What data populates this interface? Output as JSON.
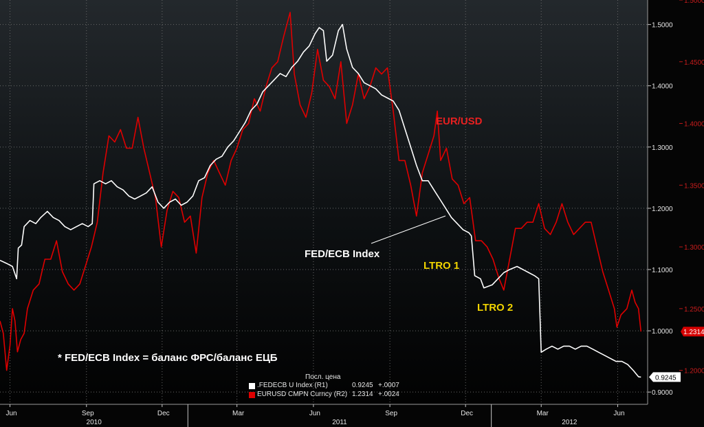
{
  "colors": {
    "background": "#050505",
    "fedecb": "#ffffff",
    "eurusd": "#e00000",
    "annotation_yellow": "#f2d500",
    "annotation_red": "#e82020",
    "grid": "#6a6a6a"
  },
  "annotations": {
    "eurusd_label": "EUR/USD",
    "fedecb_label": "FED/ECB Index",
    "ltro1": "LTRO 1",
    "ltro2": "LTRO 2",
    "footnote": "* FED/ECB Index = баланс ФРС/баланс ЕЦБ"
  },
  "legend": {
    "header": "Посл. цена",
    "items": [
      {
        "name": ".FEDECB U Index  (R1)",
        "value": "0.9245",
        "change": "+.0007",
        "color": "#ffffff"
      },
      {
        "name": "EURUSD CMPN Curncy  (R2)",
        "value": "1.2314",
        "change": "+.0024",
        "color": "#e00000"
      }
    ]
  },
  "chart_data": {
    "type": "line",
    "x_range": [
      "2010-05-20",
      "2012-07-07"
    ],
    "x_tick_labels": [
      {
        "date": "2010-06-01",
        "label": "Jun"
      },
      {
        "date": "2010-09-01",
        "label": "Sep"
      },
      {
        "date": "2010-12-01",
        "label": "Dec"
      },
      {
        "date": "2011-03-01",
        "label": "Mar"
      },
      {
        "date": "2011-06-01",
        "label": "Jun"
      },
      {
        "date": "2011-09-01",
        "label": "Sep"
      },
      {
        "date": "2011-12-01",
        "label": "Dec"
      },
      {
        "date": "2012-03-01",
        "label": "Mar"
      },
      {
        "date": "2012-06-01",
        "label": "Jun"
      }
    ],
    "year_labels": [
      {
        "label": "2010",
        "from": "2010-05-20",
        "to": "2011-01-01"
      },
      {
        "label": "2011",
        "from": "2011-01-01",
        "to": "2012-01-01"
      },
      {
        "label": "2012",
        "from": "2012-01-01",
        "to": "2012-07-07"
      }
    ],
    "axes": {
      "R1": {
        "min": 0.88,
        "max": 1.54,
        "ticks": [
          0.9,
          1.0,
          1.1,
          1.2,
          1.3,
          1.4,
          1.5
        ],
        "tick_labels": [
          "0.9000",
          "1.0000",
          "1.1000",
          "1.2000",
          "1.3000",
          "1.4000",
          "1.5000"
        ]
      },
      "R2": {
        "min": 1.1725,
        "max": 1.5,
        "ticks": [
          1.2,
          1.25,
          1.3,
          1.35,
          1.4,
          1.45,
          1.5
        ],
        "tick_labels": [
          "1.2000",
          "1.2500",
          "1.3000",
          "1.3500",
          "1.4000",
          "1.4500",
          "1.5000"
        ]
      }
    },
    "grid": true,
    "series": [
      {
        "name": ".FEDECB U Index",
        "axis": "R1",
        "last_value_label": "0.9245",
        "points": [
          [
            "2010-05-20",
            1.115
          ],
          [
            "2010-05-28",
            1.11
          ],
          [
            "2010-06-04",
            1.105
          ],
          [
            "2010-06-09",
            1.085
          ],
          [
            "2010-06-11",
            1.135
          ],
          [
            "2010-06-15",
            1.14
          ],
          [
            "2010-06-18",
            1.17
          ],
          [
            "2010-06-25",
            1.18
          ],
          [
            "2010-07-02",
            1.175
          ],
          [
            "2010-07-08",
            1.185
          ],
          [
            "2010-07-16",
            1.195
          ],
          [
            "2010-07-23",
            1.185
          ],
          [
            "2010-07-30",
            1.18
          ],
          [
            "2010-08-06",
            1.17
          ],
          [
            "2010-08-13",
            1.165
          ],
          [
            "2010-08-20",
            1.17
          ],
          [
            "2010-08-27",
            1.175
          ],
          [
            "2010-09-03",
            1.17
          ],
          [
            "2010-09-08",
            1.175
          ],
          [
            "2010-09-10",
            1.24
          ],
          [
            "2010-09-17",
            1.245
          ],
          [
            "2010-09-24",
            1.24
          ],
          [
            "2010-10-01",
            1.245
          ],
          [
            "2010-10-08",
            1.235
          ],
          [
            "2010-10-15",
            1.23
          ],
          [
            "2010-10-22",
            1.22
          ],
          [
            "2010-10-29",
            1.215
          ],
          [
            "2010-11-05",
            1.22
          ],
          [
            "2010-11-12",
            1.225
          ],
          [
            "2010-11-19",
            1.235
          ],
          [
            "2010-11-26",
            1.21
          ],
          [
            "2010-12-03",
            1.2
          ],
          [
            "2010-12-10",
            1.21
          ],
          [
            "2010-12-17",
            1.215
          ],
          [
            "2010-12-24",
            1.205
          ],
          [
            "2010-12-31",
            1.21
          ],
          [
            "2011-01-07",
            1.22
          ],
          [
            "2011-01-14",
            1.245
          ],
          [
            "2011-01-21",
            1.25
          ],
          [
            "2011-01-28",
            1.27
          ],
          [
            "2011-02-04",
            1.28
          ],
          [
            "2011-02-11",
            1.285
          ],
          [
            "2011-02-18",
            1.3
          ],
          [
            "2011-02-25",
            1.31
          ],
          [
            "2011-03-04",
            1.325
          ],
          [
            "2011-03-11",
            1.34
          ],
          [
            "2011-03-18",
            1.36
          ],
          [
            "2011-03-25",
            1.37
          ],
          [
            "2011-04-01",
            1.39
          ],
          [
            "2011-04-08",
            1.4
          ],
          [
            "2011-04-15",
            1.41
          ],
          [
            "2011-04-22",
            1.42
          ],
          [
            "2011-04-29",
            1.415
          ],
          [
            "2011-05-06",
            1.43
          ],
          [
            "2011-05-13",
            1.44
          ],
          [
            "2011-05-20",
            1.455
          ],
          [
            "2011-05-27",
            1.465
          ],
          [
            "2011-06-03",
            1.485
          ],
          [
            "2011-06-08",
            1.495
          ],
          [
            "2011-06-13",
            1.49
          ],
          [
            "2011-06-17",
            1.44
          ],
          [
            "2011-06-24",
            1.45
          ],
          [
            "2011-07-01",
            1.49
          ],
          [
            "2011-07-06",
            1.5
          ],
          [
            "2011-07-11",
            1.46
          ],
          [
            "2011-07-18",
            1.43
          ],
          [
            "2011-07-25",
            1.42
          ],
          [
            "2011-08-01",
            1.405
          ],
          [
            "2011-08-08",
            1.4
          ],
          [
            "2011-08-15",
            1.395
          ],
          [
            "2011-08-22",
            1.385
          ],
          [
            "2011-08-29",
            1.38
          ],
          [
            "2011-09-05",
            1.375
          ],
          [
            "2011-09-12",
            1.36
          ],
          [
            "2011-09-19",
            1.33
          ],
          [
            "2011-09-26",
            1.3
          ],
          [
            "2011-10-03",
            1.27
          ],
          [
            "2011-10-10",
            1.245
          ],
          [
            "2011-10-17",
            1.245
          ],
          [
            "2011-10-24",
            1.23
          ],
          [
            "2011-10-31",
            1.215
          ],
          [
            "2011-11-07",
            1.2
          ],
          [
            "2011-11-14",
            1.185
          ],
          [
            "2011-11-21",
            1.175
          ],
          [
            "2011-11-28",
            1.165
          ],
          [
            "2011-12-05",
            1.16
          ],
          [
            "2011-12-08",
            1.155
          ],
          [
            "2011-12-12",
            1.09
          ],
          [
            "2011-12-19",
            1.085
          ],
          [
            "2011-12-23",
            1.07
          ],
          [
            "2012-01-02",
            1.075
          ],
          [
            "2012-01-09",
            1.085
          ],
          [
            "2012-01-16",
            1.095
          ],
          [
            "2012-01-23",
            1.1
          ],
          [
            "2012-02-01",
            1.105
          ],
          [
            "2012-02-08",
            1.1
          ],
          [
            "2012-02-15",
            1.095
          ],
          [
            "2012-02-22",
            1.09
          ],
          [
            "2012-02-27",
            1.085
          ],
          [
            "2012-03-01",
            0.965
          ],
          [
            "2012-03-07",
            0.97
          ],
          [
            "2012-03-14",
            0.975
          ],
          [
            "2012-03-21",
            0.97
          ],
          [
            "2012-03-28",
            0.975
          ],
          [
            "2012-04-04",
            0.975
          ],
          [
            "2012-04-11",
            0.97
          ],
          [
            "2012-04-18",
            0.975
          ],
          [
            "2012-04-25",
            0.975
          ],
          [
            "2012-05-02",
            0.97
          ],
          [
            "2012-05-09",
            0.965
          ],
          [
            "2012-05-16",
            0.96
          ],
          [
            "2012-05-23",
            0.955
          ],
          [
            "2012-05-30",
            0.95
          ],
          [
            "2012-06-06",
            0.95
          ],
          [
            "2012-06-13",
            0.945
          ],
          [
            "2012-06-20",
            0.935
          ],
          [
            "2012-06-26",
            0.925
          ],
          [
            "2012-06-29",
            0.9245
          ]
        ]
      },
      {
        "name": "EURUSD CMPN Curncy",
        "axis": "R2",
        "last_value_label": "1.2314",
        "points": [
          [
            "2010-05-20",
            1.24
          ],
          [
            "2010-05-24",
            1.23
          ],
          [
            "2010-05-28",
            1.2
          ],
          [
            "2010-06-01",
            1.22
          ],
          [
            "2010-06-04",
            1.25
          ],
          [
            "2010-06-07",
            1.24
          ],
          [
            "2010-06-10",
            1.215
          ],
          [
            "2010-06-14",
            1.225
          ],
          [
            "2010-06-18",
            1.23
          ],
          [
            "2010-06-22",
            1.25
          ],
          [
            "2010-06-29",
            1.265
          ],
          [
            "2010-07-06",
            1.27
          ],
          [
            "2010-07-13",
            1.29
          ],
          [
            "2010-07-20",
            1.29
          ],
          [
            "2010-07-27",
            1.305
          ],
          [
            "2010-08-03",
            1.28
          ],
          [
            "2010-08-10",
            1.27
          ],
          [
            "2010-08-17",
            1.265
          ],
          [
            "2010-08-24",
            1.27
          ],
          [
            "2010-08-31",
            1.285
          ],
          [
            "2010-09-07",
            1.3
          ],
          [
            "2010-09-14",
            1.32
          ],
          [
            "2010-09-21",
            1.36
          ],
          [
            "2010-09-28",
            1.39
          ],
          [
            "2010-10-05",
            1.385
          ],
          [
            "2010-10-12",
            1.395
          ],
          [
            "2010-10-19",
            1.38
          ],
          [
            "2010-10-26",
            1.38
          ],
          [
            "2010-11-02",
            1.405
          ],
          [
            "2010-11-09",
            1.38
          ],
          [
            "2010-11-16",
            1.36
          ],
          [
            "2010-11-23",
            1.34
          ],
          [
            "2010-11-30",
            1.3
          ],
          [
            "2010-12-07",
            1.33
          ],
          [
            "2010-12-14",
            1.345
          ],
          [
            "2010-12-21",
            1.34
          ],
          [
            "2010-12-28",
            1.32
          ],
          [
            "2011-01-04",
            1.325
          ],
          [
            "2011-01-11",
            1.295
          ],
          [
            "2011-01-18",
            1.34
          ],
          [
            "2011-01-25",
            1.36
          ],
          [
            "2011-02-01",
            1.37
          ],
          [
            "2011-02-08",
            1.36
          ],
          [
            "2011-02-15",
            1.35
          ],
          [
            "2011-02-22",
            1.37
          ],
          [
            "2011-03-01",
            1.38
          ],
          [
            "2011-03-08",
            1.395
          ],
          [
            "2011-03-15",
            1.4
          ],
          [
            "2011-03-22",
            1.42
          ],
          [
            "2011-03-29",
            1.41
          ],
          [
            "2011-04-05",
            1.43
          ],
          [
            "2011-04-12",
            1.445
          ],
          [
            "2011-04-19",
            1.45
          ],
          [
            "2011-04-26",
            1.47
          ],
          [
            "2011-05-02",
            1.485
          ],
          [
            "2011-05-04",
            1.49
          ],
          [
            "2011-05-09",
            1.44
          ],
          [
            "2011-05-16",
            1.415
          ],
          [
            "2011-05-23",
            1.405
          ],
          [
            "2011-05-30",
            1.425
          ],
          [
            "2011-06-06",
            1.46
          ],
          [
            "2011-06-13",
            1.435
          ],
          [
            "2011-06-20",
            1.43
          ],
          [
            "2011-06-27",
            1.42
          ],
          [
            "2011-07-04",
            1.45
          ],
          [
            "2011-07-11",
            1.4
          ],
          [
            "2011-07-18",
            1.415
          ],
          [
            "2011-07-25",
            1.44
          ],
          [
            "2011-08-01",
            1.42
          ],
          [
            "2011-08-08",
            1.43
          ],
          [
            "2011-08-15",
            1.445
          ],
          [
            "2011-08-22",
            1.44
          ],
          [
            "2011-08-29",
            1.445
          ],
          [
            "2011-09-05",
            1.41
          ],
          [
            "2011-09-12",
            1.37
          ],
          [
            "2011-09-19",
            1.37
          ],
          [
            "2011-09-26",
            1.35
          ],
          [
            "2011-10-03",
            1.325
          ],
          [
            "2011-10-06",
            1.34
          ],
          [
            "2011-10-10",
            1.36
          ],
          [
            "2011-10-17",
            1.375
          ],
          [
            "2011-10-24",
            1.39
          ],
          [
            "2011-10-28",
            1.41
          ],
          [
            "2011-11-01",
            1.37
          ],
          [
            "2011-11-08",
            1.38
          ],
          [
            "2011-11-15",
            1.355
          ],
          [
            "2011-11-22",
            1.35
          ],
          [
            "2011-11-29",
            1.335
          ],
          [
            "2011-12-06",
            1.34
          ],
          [
            "2011-12-13",
            1.305
          ],
          [
            "2011-12-20",
            1.305
          ],
          [
            "2011-12-27",
            1.3
          ],
          [
            "2012-01-03",
            1.29
          ],
          [
            "2012-01-10",
            1.275
          ],
          [
            "2012-01-16",
            1.265
          ],
          [
            "2012-01-23",
            1.29
          ],
          [
            "2012-01-30",
            1.315
          ],
          [
            "2012-02-06",
            1.315
          ],
          [
            "2012-02-13",
            1.32
          ],
          [
            "2012-02-20",
            1.32
          ],
          [
            "2012-02-27",
            1.335
          ],
          [
            "2012-03-05",
            1.315
          ],
          [
            "2012-03-12",
            1.31
          ],
          [
            "2012-03-19",
            1.32
          ],
          [
            "2012-03-26",
            1.335
          ],
          [
            "2012-04-02",
            1.32
          ],
          [
            "2012-04-09",
            1.31
          ],
          [
            "2012-04-16",
            1.315
          ],
          [
            "2012-04-23",
            1.32
          ],
          [
            "2012-04-30",
            1.32
          ],
          [
            "2012-05-07",
            1.3
          ],
          [
            "2012-05-14",
            1.28
          ],
          [
            "2012-05-21",
            1.265
          ],
          [
            "2012-05-28",
            1.25
          ],
          [
            "2012-05-31",
            1.235
          ],
          [
            "2012-06-05",
            1.245
          ],
          [
            "2012-06-12",
            1.25
          ],
          [
            "2012-06-18",
            1.265
          ],
          [
            "2012-06-22",
            1.255
          ],
          [
            "2012-06-26",
            1.25
          ],
          [
            "2012-06-29",
            1.2314
          ]
        ]
      }
    ]
  }
}
